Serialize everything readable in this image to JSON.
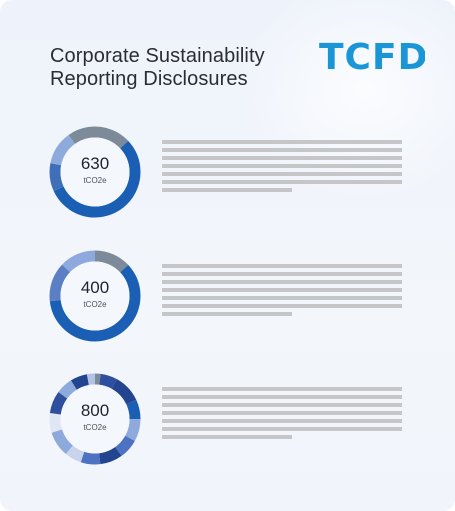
{
  "header": {
    "title_line1": "Corporate Sustainability",
    "title_line2": "Reporting Disclosures",
    "logo": "TCFD"
  },
  "colors": {
    "brand_blue": "#1a96d6",
    "donut_dark": "#1a5fb4",
    "donut_light": "#8ea9dc",
    "donut_gray": "#7c8a99",
    "text_line": "#c6c6c9"
  },
  "metrics": [
    {
      "value": "630",
      "unit": "tCO2e",
      "segments": [
        {
          "fraction": 0.13,
          "color": "#7c8a99"
        },
        {
          "fraction": 0.55,
          "color": "#1a5fb4"
        },
        {
          "fraction": 0.1,
          "color": "#3f6fb8"
        },
        {
          "fraction": 0.12,
          "color": "#8ea9dc"
        },
        {
          "fraction": 0.1,
          "color": "#7c8a99"
        }
      ]
    },
    {
      "value": "400",
      "unit": "tCO2e",
      "segments": [
        {
          "fraction": 0.13,
          "color": "#7c8a99"
        },
        {
          "fraction": 0.6,
          "color": "#1a5fb4"
        },
        {
          "fraction": 0.14,
          "color": "#5b7fc4"
        },
        {
          "fraction": 0.13,
          "color": "#8ea9dc"
        }
      ]
    },
    {
      "value": "800",
      "unit": "tCO2e",
      "segments": [
        {
          "fraction": 0.02,
          "color": "#7c8a99"
        },
        {
          "fraction": 0.06,
          "color": "#2e4f9e"
        },
        {
          "fraction": 0.1,
          "color": "#23448f"
        },
        {
          "fraction": 0.07,
          "color": "#1a5fb4"
        },
        {
          "fraction": 0.08,
          "color": "#8ea9dc"
        },
        {
          "fraction": 0.07,
          "color": "#4d72c2"
        },
        {
          "fraction": 0.08,
          "color": "#23448f"
        },
        {
          "fraction": 0.07,
          "color": "#4d72c2"
        },
        {
          "fraction": 0.06,
          "color": "#c9d4ec"
        },
        {
          "fraction": 0.09,
          "color": "#8ea9dc"
        },
        {
          "fraction": 0.07,
          "color": "#dfe6f4"
        },
        {
          "fraction": 0.08,
          "color": "#2e4f9e"
        },
        {
          "fraction": 0.06,
          "color": "#8ea9dc"
        },
        {
          "fraction": 0.06,
          "color": "#23448f"
        },
        {
          "fraction": 0.03,
          "color": "#b3c3e6"
        }
      ]
    }
  ]
}
